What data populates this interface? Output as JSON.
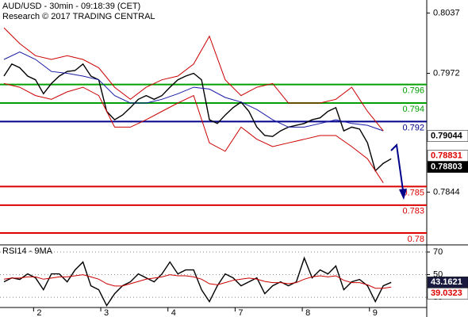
{
  "chart_data": [
    {
      "type": "line",
      "title": "AUD/USD - 30min - 09:18:39 (CET)",
      "subtitle": "Research © 2017 TRADING CENTRAL",
      "xlim": [
        0,
        108
      ],
      "ylim": [
        0.7788,
        0.8051
      ],
      "yticks": [
        0.8037,
        0.7972,
        0.7844
      ],
      "series": [
        {
          "color": "#000000",
          "x": [
            1,
            3,
            5,
            7,
            9,
            11,
            13,
            15,
            17,
            19,
            21,
            23,
            25,
            27,
            29,
            31,
            33,
            35,
            37,
            39,
            41,
            43,
            45,
            47,
            49,
            51,
            53,
            55,
            57,
            59,
            61,
            63,
            65,
            67,
            69,
            71,
            73,
            75,
            77,
            79,
            81,
            83,
            85,
            87,
            89,
            91,
            93,
            95,
            97,
            99
          ],
          "values": [
            0.7969,
            0.7982,
            0.7978,
            0.7969,
            0.7965,
            0.795,
            0.7961,
            0.7969,
            0.7974,
            0.7975,
            0.7982,
            0.7969,
            0.7965,
            0.7931,
            0.7922,
            0.7927,
            0.7935,
            0.7944,
            0.7948,
            0.7944,
            0.7948,
            0.7957,
            0.7965,
            0.7969,
            0.7972,
            0.7965,
            0.7922,
            0.7918,
            0.7927,
            0.7935,
            0.7941,
            0.7931,
            0.7914,
            0.7905,
            0.7904,
            0.791,
            0.7914,
            0.7916,
            0.7918,
            0.7922,
            0.7924,
            0.7931,
            0.7935,
            0.791,
            0.7914,
            0.7912,
            0.7897,
            0.7867,
            0.7875,
            0.788
          ]
        },
        {
          "color": "#1a1aa6",
          "x": [
            1,
            5,
            9,
            13,
            17,
            21,
            25,
            29,
            33,
            37,
            41,
            45,
            49,
            53,
            57,
            61,
            65,
            69,
            73,
            77,
            81,
            85,
            89,
            93,
            97
          ],
          "values": [
            0.7987,
            0.7995,
            0.7987,
            0.7974,
            0.7972,
            0.7969,
            0.7965,
            0.7948,
            0.794,
            0.794,
            0.7944,
            0.795,
            0.7957,
            0.7955,
            0.7946,
            0.7941,
            0.7933,
            0.7922,
            0.7914,
            0.7914,
            0.7918,
            0.7922,
            0.7918,
            0.7916,
            0.791
          ]
        },
        {
          "color": "#cc0000",
          "x": [
            1,
            5,
            9,
            13,
            17,
            21,
            25,
            29,
            33,
            37,
            41,
            45,
            49,
            53,
            57,
            61,
            65,
            69,
            73,
            77,
            81,
            85,
            89,
            93,
            97
          ],
          "values": [
            0.8021,
            0.8004,
            0.7991,
            0.7987,
            0.7991,
            0.7987,
            0.7978,
            0.7957,
            0.7944,
            0.7957,
            0.7965,
            0.7969,
            0.7982,
            0.8012,
            0.7965,
            0.7948,
            0.7957,
            0.7961,
            0.794,
            0.794,
            0.794,
            0.7944,
            0.7957,
            0.7931,
            0.791
          ]
        },
        {
          "color": "#cc0000",
          "x": [
            1,
            5,
            9,
            13,
            17,
            21,
            25,
            29,
            33,
            37,
            41,
            45,
            49,
            53,
            57,
            61,
            65,
            69,
            73,
            77,
            81,
            85,
            89,
            93,
            97
          ],
          "values": [
            0.7961,
            0.7957,
            0.7948,
            0.7944,
            0.7952,
            0.7957,
            0.7948,
            0.7914,
            0.7914,
            0.7922,
            0.7931,
            0.794,
            0.7948,
            0.7897,
            0.7888,
            0.7914,
            0.7901,
            0.7893,
            0.7897,
            0.7901,
            0.7905,
            0.7905,
            0.7893,
            0.788,
            0.7854
          ]
        }
      ],
      "levels": [
        {
          "value": 0.796,
          "color": "#00a000"
        },
        {
          "value": 0.794,
          "color": "#00a000"
        },
        {
          "value": 0.792,
          "color": "#00008b"
        },
        {
          "value": 0.785,
          "color": "#dd0000"
        },
        {
          "value": 0.783,
          "color": "#dd0000"
        },
        {
          "value": 0.78,
          "color": "#dd0000"
        }
      ],
      "price_labels": [
        {
          "value": 0.79044,
          "color": "#000000",
          "fill": "#ffffff"
        },
        {
          "value": 0.78831,
          "color": "#dd0000",
          "fill": "#ffffff"
        },
        {
          "value": 0.78803,
          "color": "#ffffff",
          "fill": "#000000"
        }
      ]
    },
    {
      "type": "line",
      "title": "RSI14 - 9MA",
      "xlim": [
        0,
        108
      ],
      "ylim": [
        21,
        75.6
      ],
      "yticks": [
        70,
        50,
        30
      ],
      "grid": true,
      "xticks": [
        {
          "value": 8.5,
          "label": "2"
        },
        {
          "value": 25.5,
          "label": "3"
        },
        {
          "value": 42.5,
          "label": "4"
        },
        {
          "value": 59.5,
          "label": "7"
        },
        {
          "value": 76.5,
          "label": "8"
        },
        {
          "value": 93.5,
          "label": "9"
        }
      ],
      "series": [
        {
          "color": "#000000",
          "x": [
            1,
            3,
            5,
            7,
            9,
            11,
            13,
            15,
            17,
            19,
            21,
            23,
            25,
            27,
            29,
            31,
            33,
            35,
            37,
            39,
            41,
            43,
            45,
            47,
            49,
            51,
            53,
            55,
            57,
            59,
            61,
            63,
            65,
            67,
            69,
            71,
            73,
            75,
            77,
            79,
            81,
            83,
            85,
            87,
            89,
            91,
            93,
            95,
            97,
            99
          ],
          "values": [
            43.7,
            47.2,
            45.8,
            50.7,
            47.2,
            36.7,
            50.7,
            50.7,
            43.7,
            54.2,
            61.2,
            40.2,
            36.7,
            22.7,
            33.2,
            40.2,
            43.7,
            50.7,
            47.2,
            43.7,
            50.7,
            61.2,
            50.7,
            54.2,
            54.2,
            36.7,
            26.2,
            40.2,
            50.7,
            47.2,
            40.2,
            43.7,
            47.2,
            33.2,
            40.2,
            43.7,
            40.2,
            43.7,
            64.7,
            47.2,
            54.2,
            50.7,
            57.7,
            36.7,
            43.7,
            45.8,
            40.2,
            26.2,
            40.2,
            43.2
          ]
        },
        {
          "color": "#cc0000",
          "x": [
            1,
            3,
            5,
            7,
            9,
            11,
            13,
            15,
            17,
            19,
            21,
            23,
            25,
            27,
            29,
            31,
            33,
            35,
            37,
            39,
            41,
            43,
            45,
            47,
            49,
            51,
            53,
            55,
            57,
            59,
            61,
            63,
            65,
            67,
            69,
            71,
            73,
            75,
            77,
            79,
            81,
            83,
            85,
            87,
            89,
            91,
            93,
            95,
            97,
            99
          ],
          "values": [
            46,
            47,
            47,
            48,
            48,
            46,
            47,
            48,
            48,
            49,
            50,
            48,
            46,
            42,
            40,
            40,
            42,
            44,
            46,
            47,
            48,
            50,
            49,
            49,
            48,
            46,
            42,
            41,
            43,
            45,
            46,
            47,
            46,
            44,
            43,
            43,
            42,
            43,
            46,
            48,
            49,
            48,
            49,
            45,
            43,
            43,
            41,
            38,
            38,
            39
          ]
        }
      ],
      "price_labels": [
        {
          "value": 43.1621,
          "color": "#ffffff",
          "fill": "#1a1a40"
        },
        {
          "value": 39.0323,
          "color": "#dd0000",
          "fill": "#ffffff"
        }
      ]
    }
  ]
}
